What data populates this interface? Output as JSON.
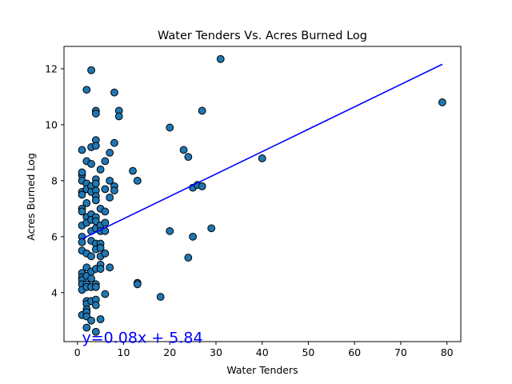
{
  "chart_data": {
    "type": "scatter",
    "title": "Water Tenders Vs. Acres Burned Log",
    "xlabel": "Water Tenders",
    "ylabel": "Acres Burned Log",
    "xlim": [
      -2.9,
      83.0
    ],
    "ylim": [
      2.25,
      12.8
    ],
    "xticks": [
      0,
      10,
      20,
      30,
      40,
      50,
      60,
      70,
      80
    ],
    "yticks": [
      4,
      6,
      8,
      10,
      12
    ],
    "grid": false,
    "legend": "none",
    "marker_color": "#1f77b4",
    "marker_edge": "#000000",
    "line_color": "#0000ff",
    "annotation": {
      "text": "y=0.08x + 5.84",
      "x": 1,
      "y": 2.2
    },
    "regression": {
      "slope": 0.08,
      "intercept": 5.84,
      "x_range": [
        1,
        79
      ]
    },
    "points": [
      [
        1,
        9.1
      ],
      [
        1,
        8.2
      ],
      [
        1,
        8.3
      ],
      [
        1,
        8.0
      ],
      [
        1,
        7.6
      ],
      [
        1,
        7.5
      ],
      [
        1,
        7.0
      ],
      [
        1,
        6.9
      ],
      [
        1,
        6.4
      ],
      [
        1,
        6.0
      ],
      [
        1,
        5.8
      ],
      [
        1,
        5.5
      ],
      [
        1,
        4.7
      ],
      [
        1,
        4.55
      ],
      [
        1,
        4.45
      ],
      [
        1,
        4.3
      ],
      [
        1,
        4.1
      ],
      [
        1,
        3.2
      ],
      [
        2,
        11.25
      ],
      [
        2,
        8.7
      ],
      [
        2,
        7.9
      ],
      [
        2,
        7.7
      ],
      [
        2,
        7.2
      ],
      [
        2,
        6.7
      ],
      [
        2,
        6.5
      ],
      [
        2,
        5.4
      ],
      [
        2,
        4.9
      ],
      [
        2,
        4.6
      ],
      [
        2,
        4.3
      ],
      [
        2,
        4.2
      ],
      [
        2,
        3.7
      ],
      [
        2,
        3.6
      ],
      [
        2,
        3.4
      ],
      [
        2,
        3.3
      ],
      [
        2,
        3.15
      ],
      [
        2,
        2.75
      ],
      [
        3,
        11.95
      ],
      [
        3,
        9.2
      ],
      [
        3,
        8.6
      ],
      [
        3,
        7.8
      ],
      [
        3,
        7.6
      ],
      [
        3,
        6.8
      ],
      [
        3,
        6.6
      ],
      [
        3,
        6.2
      ],
      [
        3,
        5.85
      ],
      [
        3,
        5.3
      ],
      [
        3,
        4.75
      ],
      [
        3,
        4.5
      ],
      [
        3,
        4.2
      ],
      [
        3,
        3.7
      ],
      [
        3,
        3.0
      ],
      [
        4,
        10.5
      ],
      [
        4,
        10.4
      ],
      [
        4,
        9.45
      ],
      [
        4,
        9.25
      ],
      [
        4,
        8.05
      ],
      [
        4,
        7.9
      ],
      [
        4,
        7.65
      ],
      [
        4,
        7.45
      ],
      [
        4,
        7.3
      ],
      [
        4,
        6.7
      ],
      [
        4,
        6.55
      ],
      [
        4,
        6.3
      ],
      [
        4,
        5.75
      ],
      [
        4,
        5.55
      ],
      [
        4,
        4.85
      ],
      [
        4,
        4.3
      ],
      [
        4,
        4.2
      ],
      [
        4,
        3.75
      ],
      [
        4,
        3.55
      ],
      [
        4,
        2.6
      ],
      [
        5,
        8.4
      ],
      [
        5,
        7.0
      ],
      [
        5,
        6.4
      ],
      [
        5,
        6.2
      ],
      [
        5,
        5.75
      ],
      [
        5,
        5.6
      ],
      [
        5,
        5.3
      ],
      [
        5,
        5.0
      ],
      [
        5,
        4.85
      ],
      [
        5,
        3.05
      ],
      [
        6,
        8.7
      ],
      [
        6,
        7.7
      ],
      [
        6,
        6.9
      ],
      [
        6,
        6.5
      ],
      [
        6,
        6.2
      ],
      [
        6,
        5.4
      ],
      [
        6,
        3.95
      ],
      [
        7,
        9.0
      ],
      [
        7,
        8.0
      ],
      [
        7,
        7.4
      ],
      [
        7,
        4.9
      ],
      [
        8,
        11.15
      ],
      [
        8,
        9.35
      ],
      [
        8,
        7.8
      ],
      [
        8,
        7.65
      ],
      [
        9,
        10.5
      ],
      [
        9,
        10.3
      ],
      [
        12,
        8.35
      ],
      [
        13,
        8.0
      ],
      [
        13,
        4.35
      ],
      [
        13,
        4.3
      ],
      [
        18,
        3.85
      ],
      [
        20,
        9.9
      ],
      [
        20,
        6.2
      ],
      [
        23,
        9.1
      ],
      [
        24,
        8.85
      ],
      [
        24,
        5.25
      ],
      [
        25,
        7.75
      ],
      [
        25,
        6.0
      ],
      [
        26,
        7.85
      ],
      [
        27,
        10.5
      ],
      [
        27,
        7.8
      ],
      [
        29,
        6.3
      ],
      [
        31,
        12.35
      ],
      [
        40,
        8.8
      ],
      [
        79,
        10.8
      ]
    ]
  }
}
